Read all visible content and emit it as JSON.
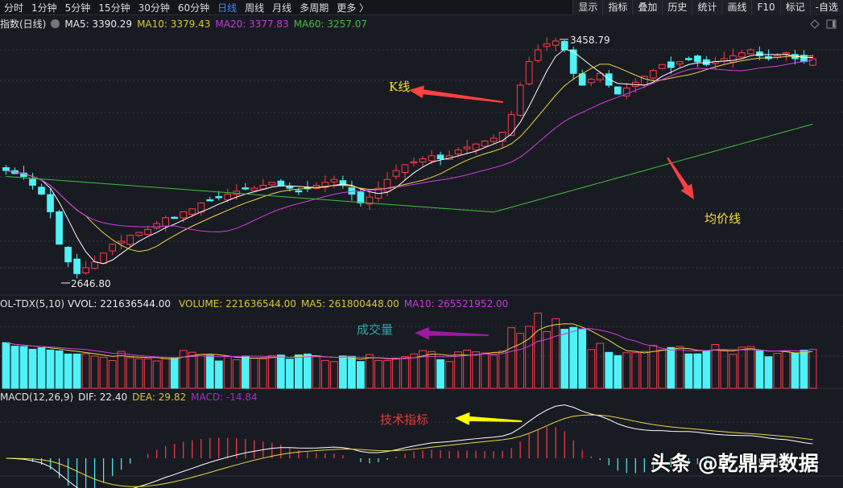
{
  "toolbar": {
    "periods": [
      {
        "label": "分时",
        "active": false
      },
      {
        "label": "1分钟",
        "active": false
      },
      {
        "label": "5分钟",
        "active": false
      },
      {
        "label": "15分钟",
        "active": false
      },
      {
        "label": "30分钟",
        "active": false
      },
      {
        "label": "60分钟",
        "active": false
      },
      {
        "label": "日线",
        "active": true
      },
      {
        "label": "周线",
        "active": false
      },
      {
        "label": "月线",
        "active": false
      },
      {
        "label": "多周期",
        "active": false
      },
      {
        "label": "更多 〉",
        "active": false
      }
    ],
    "tools": [
      "显示",
      "指标",
      "叠加",
      "历史",
      "统计",
      "画线",
      "F10",
      "标记",
      "-自选"
    ]
  },
  "price_panel": {
    "title": "指数(日线)",
    "ma5": "MA5: 3390.29",
    "ma10": "MA10: 3379.43",
    "ma20": "MA20: 3377.83",
    "ma60": "MA60: 3257.07",
    "high_label": "3458.79",
    "low_label": "2646.80"
  },
  "volume_panel": {
    "title": "OL-TDX(5,10)",
    "vvol": "VVOL: 221636544.00",
    "volume": "VOLUME: 221636544.00",
    "ma5": "MA5: 261800448.00",
    "ma10": "MA10: 265521952.00"
  },
  "macd_panel": {
    "title": "MACD(12,26,9)",
    "dif": "DIF: 22.40",
    "dea": "DEA: 29.82",
    "macd": "MACD: -14.84"
  },
  "annotations": {
    "kline": "K线",
    "ma_line": "均价线",
    "volume": "成交量",
    "indicator": "技术指标"
  },
  "watermark": "头条 @乾鼎昇数据",
  "colors": {
    "bg": "#191b22",
    "up": "#ff3b4a",
    "down": "#4ff2f6",
    "ma5": "#ffffff",
    "ma10": "#e8d640",
    "ma20": "#d23be0",
    "ma60": "#3fbf3f",
    "active_tab": "#3d8bff"
  },
  "chart_data": {
    "type": "candlestick",
    "title": "指数(日线)",
    "indicators": [
      "MA5",
      "MA10",
      "MA20",
      "MA60"
    ],
    "ma_values": {
      "MA5": 3390.29,
      "MA10": 3379.43,
      "MA20": 3377.83,
      "MA60": 3257.07
    },
    "high": 3458.79,
    "low": 2646.8,
    "volume": {
      "VVOL": 221636544.0,
      "VOLUME": 221636544.0,
      "MA5": 261800448.0,
      "MA10": 265521952.0
    },
    "macd": {
      "params": "12,26,9",
      "DIF": 22.4,
      "DEA": 29.82,
      "MACD": -14.84
    },
    "trend_shape_close": [
      3010,
      3000,
      2990,
      2960,
      2930,
      2870,
      2760,
      2700,
      2660,
      2680,
      2700,
      2730,
      2760,
      2770,
      2790,
      2800,
      2810,
      2830,
      2850,
      2850,
      2870,
      2880,
      2900,
      2910,
      2920,
      2930,
      2940,
      2950,
      2950,
      2960,
      2970,
      2960,
      2950,
      2940,
      2950,
      2960,
      2970,
      2980,
      2960,
      2930,
      2900,
      2920,
      2950,
      2980,
      3010,
      3030,
      3040,
      3050,
      3060,
      3050,
      3060,
      3080,
      3090,
      3100,
      3110,
      3120,
      3140,
      3200,
      3300,
      3380,
      3420,
      3440,
      3450,
      3420,
      3340,
      3300,
      3320,
      3340,
      3300,
      3270,
      3290,
      3310,
      3330,
      3350,
      3370,
      3360,
      3380,
      3390,
      3380,
      3370,
      3380,
      3390,
      3400,
      3410,
      3420,
      3400,
      3390,
      3400,
      3410,
      3390,
      3380,
      3390
    ]
  }
}
